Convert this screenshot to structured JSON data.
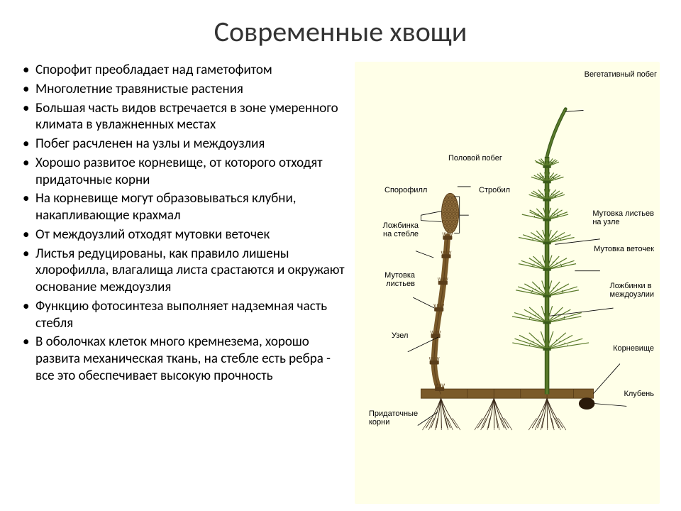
{
  "title": "Современные хвощи",
  "bullets": [
    "Спорофит преобладает над гаметофитом",
    "Многолетние травянистые растения",
    "Большая часть видов встречается в зоне умеренного климата в увлажненных местах",
    "Побег расчленен на узлы и междоузлия",
    "Хорошо развитое корневище, от которого отходят придаточные корни",
    "На корневище могут образовываться клубни, накапливающие крахмал",
    "От междоузлий отходят мутовки веточек",
    "Листья редуцированы, как правило лишены хлорофилла, влагалища листа срастаются и окружают основание междоузлия",
    "Функцию фотосинтеза выполняет надземная часть стебля",
    "В оболочках клеток много кремнезема, хорошо развита механическая ткань, на стебле есть ребра  - все это обеспечивает высокую прочность"
  ],
  "diagram": {
    "background": "#ffffe8",
    "labels": {
      "vegetative_shoot": "Вегетативный побег",
      "sexual_shoot": "Половой побег",
      "sporophyll": "Спорофилл",
      "strobilus": "Стробил",
      "groove_stem": "Ложбинка\nна стебле",
      "whorl_leaves": "Мутовка\nлистьев",
      "node": "Узел",
      "adventitious_roots": "Придаточные\nкорни",
      "whorl_leaves_node": "Мутовка листьев\nна узле",
      "whorl_branches": "Мутовка веточек",
      "grooves_internode": "Ложбинки в\nмеждоузлии",
      "rhizome": "Корневище",
      "tuber": "Клубень"
    },
    "colors": {
      "stem_brown": "#7a5a2a",
      "stem_dark": "#5a3e1a",
      "green_branch": "#5a7a2a",
      "green_dark": "#3a5a1a",
      "cone": "#8a6a3a",
      "root": "#3a2a1a",
      "tuber": "#2a1a0a",
      "rhizome": "#7a5a2a"
    }
  }
}
